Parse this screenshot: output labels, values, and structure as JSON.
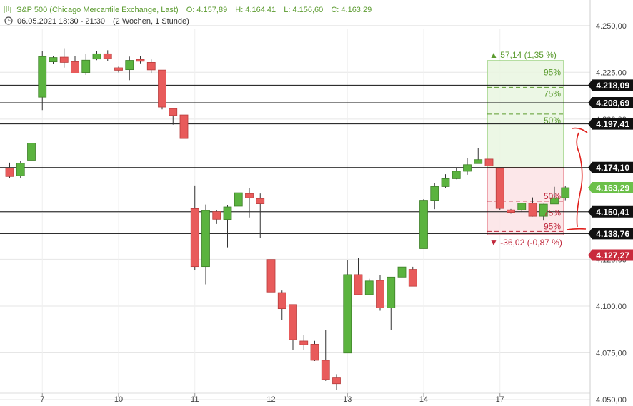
{
  "header": {
    "title": "S&P 500 (Chicago Mercantile Exchange, Last)",
    "open": "O: 4.157,89",
    "high": "H: 4.164,41",
    "low": "L: 4.156,60",
    "close": "C: 4.163,29",
    "date": "06.05.2021 18:30 - 21:30",
    "period": "(2 Wochen, 1 Stunde)"
  },
  "colors": {
    "up": "#5bb33f",
    "down": "#e85b5b",
    "green_text": "#5b9b2f",
    "red_text": "#c0283c",
    "annotation": "#e0201c"
  },
  "chart_data": {
    "type": "candlestick",
    "title": "S&P 500 (Chicago Mercantile Exchange, Last)",
    "ylim": [
      4050,
      4262.5
    ],
    "y_ticks": [
      4050,
      4075,
      4100,
      4125,
      4150,
      4175,
      4200,
      4225,
      4250
    ],
    "y_tick_labels": [
      "4.050,00",
      "4.075,00",
      "4.100,00",
      "4.125,00",
      "4.150,00",
      "4.175,00",
      "4.200,00",
      "4.225,00",
      "4.250,00"
    ],
    "x_ticks": [
      {
        "label": "7",
        "index": 3
      },
      {
        "label": "10",
        "index": 10
      },
      {
        "label": "11",
        "index": 17
      },
      {
        "label": "12",
        "index": 24
      },
      {
        "label": "13",
        "index": 31
      },
      {
        "label": "14",
        "index": 38
      },
      {
        "label": "17",
        "index": 45
      }
    ],
    "candles": [
      {
        "o": 4173.8,
        "h": 4176.7,
        "l": 4168.5,
        "c": 4169.3
      },
      {
        "o": 4169.7,
        "h": 4177.7,
        "l": 4168.5,
        "c": 4176.4
      },
      {
        "o": 4178.0,
        "h": 4187.3,
        "l": 4178.0,
        "c": 4187.1
      },
      {
        "o": 4211.7,
        "h": 4236.4,
        "l": 4204.8,
        "c": 4233.4
      },
      {
        "o": 4230.6,
        "h": 4233.8,
        "l": 4229.3,
        "c": 4232.9
      },
      {
        "o": 4233.1,
        "h": 4237.9,
        "l": 4227.5,
        "c": 4230.3
      },
      {
        "o": 4230.7,
        "h": 4233.5,
        "l": 4224.5,
        "c": 4224.5
      },
      {
        "o": 4224.9,
        "h": 4235.0,
        "l": 4223.6,
        "c": 4231.5
      },
      {
        "o": 4232.1,
        "h": 4236.2,
        "l": 4231.5,
        "c": 4234.9
      },
      {
        "o": 4234.9,
        "h": 4236.8,
        "l": 4230.9,
        "c": 4232.3
      },
      {
        "o": 4227.4,
        "h": 4228.0,
        "l": 4224.9,
        "c": 4226.1
      },
      {
        "o": 4226.4,
        "h": 4233.4,
        "l": 4220.8,
        "c": 4231.4
      },
      {
        "o": 4231.9,
        "h": 4233.5,
        "l": 4229.8,
        "c": 4230.9
      },
      {
        "o": 4230.3,
        "h": 4231.9,
        "l": 4224.5,
        "c": 4226.3
      },
      {
        "o": 4226.2,
        "h": 4226.2,
        "l": 4205.2,
        "c": 4206.4
      },
      {
        "o": 4205.6,
        "h": 4206.0,
        "l": 4197.0,
        "c": 4201.9
      },
      {
        "o": 4202.2,
        "h": 4205.2,
        "l": 4184.9,
        "c": 4189.6
      },
      {
        "o": 4152.1,
        "h": 4164.5,
        "l": 4119.4,
        "c": 4121.1
      },
      {
        "o": 4121.1,
        "h": 4154.3,
        "l": 4111.6,
        "c": 4151.1
      },
      {
        "o": 4150.5,
        "h": 4151.3,
        "l": 4143.9,
        "c": 4146.4
      },
      {
        "o": 4146.3,
        "h": 4154.0,
        "l": 4131.4,
        "c": 4153.0
      },
      {
        "o": 4153.4,
        "h": 4160.6,
        "l": 4153.4,
        "c": 4160.6
      },
      {
        "o": 4160.2,
        "h": 4163.2,
        "l": 4147.4,
        "c": 4157.9
      },
      {
        "o": 4157.5,
        "h": 4160.2,
        "l": 4136.6,
        "c": 4154.7
      },
      {
        "o": 4124.9,
        "h": 4124.9,
        "l": 4106.2,
        "c": 4107.5
      },
      {
        "o": 4107.2,
        "h": 4108.3,
        "l": 4092.7,
        "c": 4098.6
      },
      {
        "o": 4100.8,
        "h": 4100.8,
        "l": 4076.7,
        "c": 4082.0
      },
      {
        "o": 4081.3,
        "h": 4084.5,
        "l": 4076.4,
        "c": 4079.3
      },
      {
        "o": 4079.6,
        "h": 4081.4,
        "l": 4070.6,
        "c": 4071.0
      },
      {
        "o": 4071.0,
        "h": 4087.3,
        "l": 4060.0,
        "c": 4060.7
      },
      {
        "o": 4061.6,
        "h": 4063.6,
        "l": 4055.3,
        "c": 4058.5
      },
      {
        "o": 4074.9,
        "h": 4124.7,
        "l": 4074.9,
        "c": 4116.8
      },
      {
        "o": 4116.8,
        "h": 4125.7,
        "l": 4106.1,
        "c": 4106.1
      },
      {
        "o": 4106.1,
        "h": 4114.6,
        "l": 4106.1,
        "c": 4113.4
      },
      {
        "o": 4113.7,
        "h": 4116.4,
        "l": 4097.5,
        "c": 4099.0
      },
      {
        "o": 4099.0,
        "h": 4115.5,
        "l": 4087.1,
        "c": 4115.5
      },
      {
        "o": 4115.5,
        "h": 4123.3,
        "l": 4112.9,
        "c": 4120.9
      },
      {
        "o": 4119.6,
        "h": 4121.0,
        "l": 4110.6,
        "c": 4110.6
      },
      {
        "o": 4130.7,
        "h": 4157.2,
        "l": 4130.7,
        "c": 4156.6
      },
      {
        "o": 4156.6,
        "h": 4165.6,
        "l": 4151.8,
        "c": 4163.9
      },
      {
        "o": 4163.9,
        "h": 4170.5,
        "l": 4163.0,
        "c": 4168.1
      },
      {
        "o": 4168.1,
        "h": 4174.0,
        "l": 4167.8,
        "c": 4172.1
      },
      {
        "o": 4172.1,
        "h": 4179.2,
        "l": 4170.2,
        "c": 4175.6
      },
      {
        "o": 4176.2,
        "h": 4184.4,
        "l": 4176.2,
        "c": 4178.3
      },
      {
        "o": 4178.6,
        "h": 4180.7,
        "l": 4174.9,
        "c": 4174.9
      },
      {
        "o": 4173.7,
        "h": 4173.7,
        "l": 4151.1,
        "c": 4152.2
      },
      {
        "o": 4151.4,
        "h": 4151.9,
        "l": 4149.4,
        "c": 4150.1
      },
      {
        "o": 4151.4,
        "h": 4155.0,
        "l": 4150.3,
        "c": 4155.0
      },
      {
        "o": 4155.0,
        "h": 4158.1,
        "l": 4147.8,
        "c": 4148.0
      },
      {
        "o": 4148.0,
        "h": 4154.7,
        "l": 4145.7,
        "c": 4154.5
      },
      {
        "o": 4154.6,
        "h": 4163.8,
        "l": 4154.6,
        "c": 4157.9
      },
      {
        "o": 4157.9,
        "h": 4164.4,
        "l": 4156.6,
        "c": 4163.3
      }
    ],
    "horizontal_lines": [
      4218.09,
      4208.69,
      4197.41,
      4174.1,
      4150.41,
      4138.76
    ],
    "price_tags": [
      {
        "label": "4.218,09",
        "value": 4218.09,
        "style": "black"
      },
      {
        "label": "4.208,69",
        "value": 4208.69,
        "style": "black"
      },
      {
        "label": "4.197,41",
        "value": 4197.41,
        "style": "black"
      },
      {
        "label": "4.174,10",
        "value": 4174.1,
        "style": "black"
      },
      {
        "label": "4.163,29",
        "value": 4163.29,
        "style": "green"
      },
      {
        "label": "4.150,41",
        "value": 4150.41,
        "style": "black"
      },
      {
        "label": "4.138,76",
        "value": 4138.76,
        "style": "black"
      },
      {
        "label": "4.127,27",
        "value": 4127.27,
        "style": "red"
      }
    ],
    "projection": {
      "reference": 4174.1,
      "upper": 4231.24,
      "lower": 4138.08,
      "up_label": "▲ 57,14 (1,35 %)",
      "down_label": "▼ -36,02 (-0,87 %)",
      "up_levels": [
        {
          "label": "95%",
          "value": 4228.37
        },
        {
          "label": "75%",
          "value": 4216.94
        },
        {
          "label": "50%",
          "value": 4202.67
        }
      ],
      "down_levels": [
        {
          "label": "50%",
          "value": 4156.09
        },
        {
          "label": "75%",
          "value": 4147.09
        },
        {
          "label": "95%",
          "value": 4139.88
        }
      ]
    }
  }
}
